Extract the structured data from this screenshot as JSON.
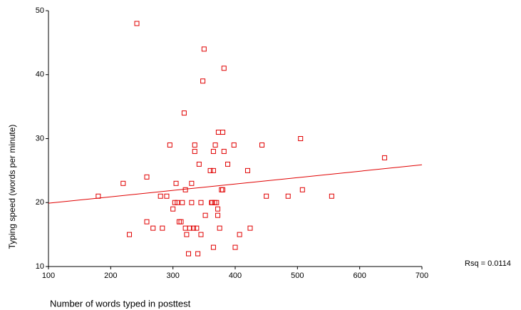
{
  "chart_data": {
    "type": "scatter",
    "x_label": "Number of words typed in posttest",
    "y_label": "Typing speed (words per minute)",
    "annotation": "Rsq = 0.0114",
    "xlim": [
      100,
      700
    ],
    "ylim": [
      10,
      50
    ],
    "xticks": [
      100,
      200,
      300,
      400,
      500,
      600,
      700
    ],
    "yticks": [
      10,
      20,
      30,
      40,
      50
    ],
    "grid": false,
    "color": "#e00000",
    "x": [
      180,
      220,
      230,
      258,
      258,
      268,
      280,
      283,
      290,
      295,
      300,
      303,
      305,
      307,
      310,
      313,
      315,
      318,
      320,
      320,
      322,
      325,
      327,
      330,
      330,
      333,
      335,
      335,
      338,
      340,
      342,
      345,
      345,
      348,
      350,
      352,
      360,
      362,
      363,
      365,
      365,
      365,
      367,
      368,
      370,
      372,
      372,
      373,
      375,
      378,
      380,
      380,
      382,
      382,
      388,
      398,
      400,
      407,
      420,
      424,
      443,
      450,
      485,
      505,
      508,
      555,
      640,
      242
    ],
    "values": [
      21,
      23,
      15,
      24,
      17,
      16,
      21,
      16,
      21,
      29,
      19,
      20,
      23,
      20,
      17,
      17,
      20,
      34,
      22,
      16,
      15,
      12,
      16,
      20,
      23,
      16,
      29,
      28,
      16,
      12,
      26,
      20,
      15,
      39,
      44,
      18,
      25,
      20,
      20,
      13,
      25,
      28,
      20,
      29,
      20,
      19,
      18,
      31,
      16,
      22,
      22,
      31,
      28,
      41,
      26,
      29,
      13,
      15,
      25,
      16,
      29,
      21,
      21,
      30,
      22,
      21,
      27,
      48
    ],
    "fit_line": {
      "x": [
        100,
        700
      ],
      "values": [
        19.9,
        25.9
      ]
    }
  }
}
